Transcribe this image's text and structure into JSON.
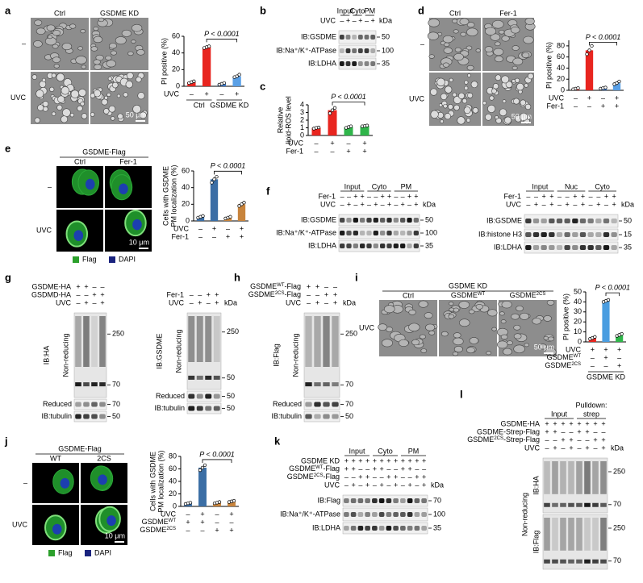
{
  "a": {
    "letter": "a",
    "images": {
      "col_labels": [
        "Ctrl",
        "GSDME KD"
      ],
      "row_labels": [
        "–",
        "UVC"
      ],
      "scale": "50 μm"
    },
    "chart": {
      "type": "bar",
      "ylabel": [
        "PI positive (%)"
      ],
      "values": [
        5,
        47,
        3,
        12
      ],
      "points": [
        [
          4,
          5,
          6
        ],
        [
          46,
          47,
          48
        ],
        [
          2,
          3,
          4
        ],
        [
          11,
          12,
          14
        ]
      ],
      "colors": [
        "#e8251f",
        "#e8251f",
        "#3b78c9",
        "#5aa0e6"
      ],
      "ylim": [
        0,
        60
      ],
      "yticks": [
        0,
        20,
        40,
        60
      ],
      "annotation": "P < 0.0001",
      "conditions": [
        {
          "label": "UVC",
          "marks": [
            "–",
            "+",
            "–",
            "+"
          ]
        }
      ],
      "groups": [
        "Ctrl",
        "GSDME KD"
      ]
    }
  },
  "b": {
    "letter": "b",
    "blot": {
      "headers": [
        "Input",
        "Cyto",
        "PM"
      ],
      "rows": [
        {
          "label": "UVC",
          "marks": [
            "–",
            "+",
            "–",
            "+",
            "–",
            "+"
          ]
        }
      ],
      "kda_unit": "kDa",
      "bands": [
        {
          "label": "IB:GSDME",
          "kda": [
            50
          ]
        },
        {
          "label": "IB:Na⁺/K⁺-ATPase",
          "kda": [
            100
          ]
        },
        {
          "label": "IB:LDHA",
          "kda": [
            35
          ]
        }
      ]
    }
  },
  "c": {
    "letter": "c",
    "chart": {
      "type": "bar",
      "ylabel": [
        "Relative",
        "lipid-ROS level"
      ],
      "values": [
        1,
        3.3,
        1.1,
        1.25
      ],
      "points": [
        [
          0.9,
          1,
          1.05
        ],
        [
          2.9,
          3.3,
          3.6
        ],
        [
          1,
          1.1,
          1.2
        ],
        [
          1.2,
          1.25,
          1.3
        ]
      ],
      "colors": [
        "#e8251f",
        "#e8251f",
        "#2fb54a",
        "#2fb54a"
      ],
      "ylim": [
        0,
        4
      ],
      "yticks": [
        0,
        1,
        2,
        3,
        4
      ],
      "annotation": "P < 0.0001",
      "conditions": [
        {
          "label": "UVC",
          "marks": [
            "–",
            "+",
            "–",
            "+"
          ]
        },
        {
          "label": "Fer-1",
          "marks": [
            "–",
            "–",
            "+",
            "+"
          ]
        }
      ]
    }
  },
  "d": {
    "letter": "d",
    "images": {
      "col_labels": [
        "Ctrl",
        "Fer-1"
      ],
      "row_labels": [
        "–",
        "UVC"
      ],
      "scale": "50 μm"
    },
    "chart": {
      "type": "bar",
      "ylabel": [
        "PI positive (%)"
      ],
      "values": [
        3,
        72,
        4,
        13
      ],
      "points": [
        [
          2,
          3,
          4
        ],
        [
          65,
          72,
          80
        ],
        [
          3,
          4,
          5
        ],
        [
          11,
          13,
          16
        ]
      ],
      "colors": [
        "#e8251f",
        "#e8251f",
        "#3b78c9",
        "#5aa0e6"
      ],
      "ylim": [
        0,
        90
      ],
      "yticks": [
        0,
        20,
        40,
        60,
        80
      ],
      "annotation": "P < 0.0001",
      "conditions": [
        {
          "label": "UVC",
          "marks": [
            "–",
            "+",
            "–",
            "+"
          ]
        },
        {
          "label": "Fer-1",
          "marks": [
            "–",
            "–",
            "+",
            "+"
          ]
        }
      ]
    }
  },
  "e": {
    "letter": "e",
    "images": {
      "header": "GSDME-Flag",
      "col_labels": [
        "Ctrl",
        "Fer-1"
      ],
      "row_labels": [
        "–",
        "UVC"
      ],
      "scale": "10 μm",
      "legend": [
        {
          "name": "Flag",
          "color": "#2ca02c"
        },
        {
          "name": "DAPI",
          "color": "#1a237e"
        }
      ]
    },
    "chart": {
      "type": "bar",
      "ylabel": [
        "Cells with GSDME",
        "PM localization (%)"
      ],
      "values": [
        5,
        50,
        4,
        20
      ],
      "points": [
        [
          4,
          5,
          6
        ],
        [
          46,
          50,
          53
        ],
        [
          3,
          4,
          5
        ],
        [
          18,
          20,
          22
        ]
      ],
      "colors": [
        "#3b6ea5",
        "#3b6ea5",
        "#c8843c",
        "#c8843c"
      ],
      "ylim": [
        0,
        60
      ],
      "yticks": [
        0,
        20,
        40,
        60
      ],
      "annotation": "P < 0.0001",
      "conditions": [
        {
          "label": "UVC",
          "marks": [
            "–",
            "+",
            "–",
            "+"
          ]
        },
        {
          "label": "Fer-1",
          "marks": [
            "–",
            "–",
            "+",
            "+"
          ]
        }
      ]
    }
  },
  "f": {
    "letter": "f",
    "blots": [
      {
        "headers": [
          "Input",
          "Cyto",
          "PM"
        ],
        "rows": [
          {
            "label": "Fer-1",
            "marks": [
              "–",
              "–",
              "+",
              "+",
              "–",
              "–",
              "+",
              "+",
              "–",
              "–",
              "+",
              "+"
            ]
          },
          {
            "label": "UVC",
            "marks": [
              "–",
              "+",
              "–",
              "+",
              "–",
              "+",
              "–",
              "+",
              "–",
              "+",
              "–",
              "+"
            ]
          }
        ],
        "kda_unit": "kDa",
        "bands": [
          {
            "label": "IB:GSDME",
            "kda": [
              50
            ]
          },
          {
            "label": "IB:Na⁺/K⁺-ATPase",
            "kda": [
              100
            ]
          },
          {
            "label": "IB:LDHA",
            "kda": [
              35
            ]
          }
        ]
      },
      {
        "headers": [
          "Input",
          "Nuc",
          "Cyto"
        ],
        "rows": [
          {
            "label": "Fer-1",
            "marks": [
              "–",
              "–",
              "+",
              "+",
              "–",
              "–",
              "+",
              "+",
              "–",
              "–",
              "+",
              "+"
            ]
          },
          {
            "label": "UVC",
            "marks": [
              "–",
              "+",
              "–",
              "+",
              "–",
              "+",
              "–",
              "+",
              "–",
              "+",
              "–",
              "+"
            ]
          }
        ],
        "kda_unit": "kDa",
        "bands": [
          {
            "label": "IB:GSDME",
            "kda": [
              50
            ]
          },
          {
            "label": "IB:histone H3",
            "kda": [
              15
            ]
          },
          {
            "label": "IB:LDHA",
            "kda": [
              35
            ]
          }
        ]
      }
    ]
  },
  "g": {
    "letter": "g",
    "blots": [
      {
        "rows": [
          {
            "label": "GSDME-HA",
            "marks": [
              "+",
              "+",
              "–",
              "–"
            ]
          },
          {
            "label": "GSDMD-HA",
            "marks": [
              "–",
              "–",
              "+",
              "+"
            ]
          },
          {
            "label": "UVC",
            "marks": [
              "–",
              "+",
              "–",
              "+"
            ]
          }
        ],
        "bands": [
          {
            "label": "IB:HA",
            "sublabel": "Non-reducing",
            "kda": [
              250,
              70
            ]
          },
          {
            "label": "Reduced",
            "kda": [
              70
            ]
          },
          {
            "label": "IB:tubulin",
            "kda": [
              50
            ]
          }
        ]
      },
      {
        "rows": [
          {
            "label": "Fer-1",
            "marks": [
              "–",
              "–",
              "+",
              "+"
            ]
          },
          {
            "label": "UVC",
            "marks": [
              "–",
              "+",
              "–",
              "+"
            ]
          }
        ],
        "kda_unit": "kDa",
        "bands": [
          {
            "label": "IB:GSDME",
            "sublabel": "Non-reducing",
            "kda": [
              250,
              50
            ]
          },
          {
            "label": "Reduced",
            "kda": [
              50
            ]
          },
          {
            "label": "IB:tubulin",
            "kda": [
              50
            ]
          }
        ]
      }
    ]
  },
  "h": {
    "letter": "h",
    "blot": {
      "rows": [
        {
          "label": {
            "text": "GSDME",
            "sup": "WT",
            "after": "-Flag"
          },
          "marks": [
            "+",
            "+",
            "–",
            "–"
          ]
        },
        {
          "label": {
            "text": "GSDME",
            "sup": "2CS",
            "after": "-Flag"
          },
          "marks": [
            "–",
            "–",
            "+",
            "+"
          ]
        },
        {
          "label": "UVC",
          "marks": [
            "–",
            "+",
            "–",
            "+"
          ]
        }
      ],
      "kda_unit": "kDa",
      "bands": [
        {
          "label": "IB:Flag",
          "sublabel": "Non-reducing",
          "kda": [
            250,
            70
          ]
        },
        {
          "label": "Reduced",
          "kda": [
            70
          ]
        },
        {
          "label": "IB:tubulin",
          "kda": [
            50
          ]
        }
      ]
    }
  },
  "i": {
    "letter": "i",
    "images": {
      "header": "GSDME KD",
      "col_labels": [
        "Ctrl",
        {
          "text": "GSDME",
          "sup": "WT"
        },
        {
          "text": "GSDME",
          "sup": "2CS"
        }
      ],
      "row_labels": [
        "UVC"
      ],
      "scale": "50 μm"
    },
    "chart": {
      "type": "bar",
      "ylabel": [
        "PI positive (%)"
      ],
      "values": [
        4,
        41,
        7
      ],
      "points": [
        [
          3,
          4,
          5
        ],
        [
          40,
          41,
          42
        ],
        [
          6,
          7,
          8
        ]
      ],
      "colors": [
        "#e8251f",
        "#4a9de0",
        "#2fb54a"
      ],
      "ylim": [
        0,
        50
      ],
      "yticks": [
        0,
        10,
        20,
        30,
        40,
        50
      ],
      "annotation": "P < 0.0001",
      "conditions": [
        {
          "label": "UVC",
          "marks": [
            "+",
            "+",
            "+"
          ]
        },
        {
          "label": {
            "text": "GSDME",
            "sup": "WT"
          },
          "marks": [
            "–",
            "+",
            "–"
          ]
        },
        {
          "label": {
            "text": "GSDME",
            "sup": "2CS"
          },
          "marks": [
            "–",
            "–",
            "+"
          ]
        }
      ],
      "groups": [
        "GSDME KD"
      ]
    }
  },
  "j": {
    "letter": "j",
    "images": {
      "header": "GSDME-Flag",
      "col_labels": [
        "WT",
        "2CS"
      ],
      "row_labels": [
        "–",
        "UVC"
      ],
      "scale": "10 μm",
      "legend": [
        {
          "name": "Flag",
          "color": "#2ca02c"
        },
        {
          "name": "DAPI",
          "color": "#1a237e"
        }
      ]
    },
    "chart": {
      "type": "bar",
      "ylabel": [
        "Cells with GSDME",
        "PM localization (%)"
      ],
      "values": [
        5,
        62,
        6,
        8
      ],
      "points": [
        [
          4,
          5,
          6
        ],
        [
          58,
          62,
          66
        ],
        [
          5,
          6,
          7
        ],
        [
          7,
          8,
          9
        ]
      ],
      "colors": [
        "#3b6ea5",
        "#3b6ea5",
        "#c8843c",
        "#c8843c"
      ],
      "ylim": [
        0,
        80
      ],
      "yticks": [
        0,
        20,
        40,
        60,
        80
      ],
      "annotation": "P < 0.0001",
      "conditions": [
        {
          "label": "UVC",
          "marks": [
            "–",
            "+",
            "–",
            "+"
          ]
        },
        {
          "label": {
            "text": "GSDME",
            "sup": "WT"
          },
          "marks": [
            "+",
            "+",
            "–",
            "–"
          ]
        },
        {
          "label": {
            "text": "GSDME",
            "sup": "2CS"
          },
          "marks": [
            "–",
            "–",
            "+",
            "+"
          ]
        }
      ]
    }
  },
  "k": {
    "letter": "k",
    "blot": {
      "headers": [
        "Input",
        "Cyto",
        "PM"
      ],
      "rows": [
        {
          "label": "GSDME KD",
          "marks": [
            "+",
            "+",
            "+",
            "+",
            "+",
            "+",
            "+",
            "+",
            "+",
            "+",
            "+",
            "+"
          ]
        },
        {
          "label": {
            "text": "GSDME",
            "sup": "WT",
            "after": "-Flag"
          },
          "marks": [
            "+",
            "+",
            "–",
            "–",
            "+",
            "+",
            "–",
            "–",
            "+",
            "+",
            "–",
            "–"
          ]
        },
        {
          "label": {
            "text": "GSDME",
            "sup": "2CS",
            "after": "-Flag"
          },
          "marks": [
            "–",
            "–",
            "+",
            "+",
            "–",
            "–",
            "+",
            "+",
            "–",
            "–",
            "+",
            "+"
          ]
        },
        {
          "label": "UVC",
          "marks": [
            "–",
            "+",
            "–",
            "+",
            "–",
            "+",
            "–",
            "+",
            "–",
            "+",
            "–",
            "+"
          ]
        }
      ],
      "kda_unit": "kDa",
      "bands": [
        {
          "label": "IB:Flag",
          "kda": [
            70
          ]
        },
        {
          "label": "IB:Na⁺/K⁺-ATPase",
          "kda": [
            100
          ]
        },
        {
          "label": "IB:LDHA",
          "kda": [
            35
          ]
        }
      ]
    }
  },
  "l": {
    "letter": "l",
    "blot": {
      "title": "Pulldown:",
      "headers": [
        "Input",
        "strep"
      ],
      "rows": [
        {
          "label": "GSDME-HA",
          "marks": [
            "+",
            "+",
            "+",
            "+",
            "+",
            "+",
            "+",
            "+"
          ]
        },
        {
          "label": "GSDME-Strep-Flag",
          "marks": [
            "+",
            "+",
            "–",
            "–",
            "+",
            "+",
            "–",
            "–"
          ]
        },
        {
          "label": {
            "text": "GSDME",
            "sup": "2CS",
            "after": "-Strep-Flag"
          },
          "marks": [
            "–",
            "–",
            "+",
            "+",
            "–",
            "–",
            "+",
            "+"
          ]
        },
        {
          "label": "UVC",
          "marks": [
            "–",
            "+",
            "–",
            "+",
            "–",
            "+",
            "–",
            "+"
          ]
        }
      ],
      "kda_unit": "kDa",
      "sidelabel": "Non-reducing",
      "bands": [
        {
          "label": "IB:HA",
          "kda": [
            250,
            70
          ]
        },
        {
          "label": "IB:Flag",
          "kda": [
            250,
            70
          ]
        }
      ]
    }
  }
}
